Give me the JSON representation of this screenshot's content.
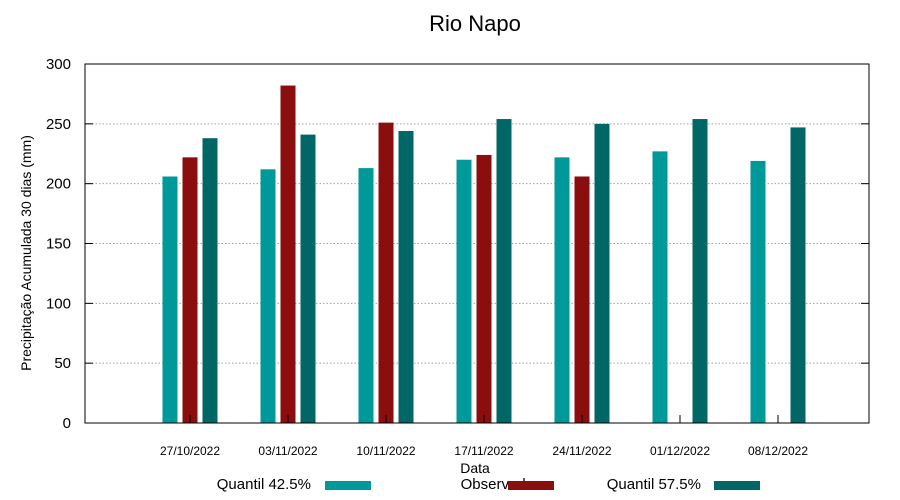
{
  "chart_data": {
    "type": "bar",
    "title": "Rio Napo",
    "xlabel": "Data",
    "ylabel": "Precipitação Acumulada 30 dias (mm)",
    "ylim": [
      0,
      300
    ],
    "yticks": [
      0,
      50,
      100,
      150,
      200,
      250,
      300
    ],
    "grid": true,
    "legend_position": "bottom",
    "categories": [
      "27/10/2022",
      "03/11/2022",
      "10/11/2022",
      "17/11/2022",
      "24/11/2022",
      "01/12/2022",
      "08/12/2022"
    ],
    "series": [
      {
        "name": "Quantil 42.5%",
        "color": "#009999",
        "values": [
          206,
          212,
          213,
          220,
          222,
          227,
          219
        ]
      },
      {
        "name": "Observado",
        "color": "#8b0e0e",
        "values": [
          222,
          282,
          251,
          224,
          206,
          null,
          null
        ]
      },
      {
        "name": "Quantil 57.5%",
        "color": "#006666",
        "values": [
          238,
          241,
          244,
          254,
          250,
          254,
          247
        ]
      }
    ]
  }
}
